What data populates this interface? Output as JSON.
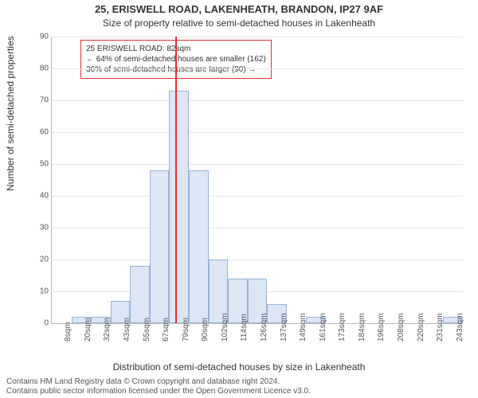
{
  "titles": {
    "main": "25, ERISWELL ROAD, LAKENHEATH, BRANDON, IP27 9AF",
    "sub": "Size of property relative to semi-detached houses in Lakenheath",
    "ylabel": "Number of semi-detached properties",
    "xlabel": "Distribution of semi-detached houses by size in Lakenheath"
  },
  "footer": {
    "l1": "Contains HM Land Registry data © Crown copyright and database right 2024.",
    "l2": "Contains public sector information licensed under the Open Government Licence v3.0."
  },
  "chart": {
    "type": "histogram",
    "ylim": [
      0,
      90
    ],
    "yticks": [
      0,
      10,
      20,
      30,
      40,
      50,
      60,
      70,
      80,
      90
    ],
    "xcats": [
      "8sqm",
      "20sqm",
      "32sqm",
      "43sqm",
      "55sqm",
      "67sqm",
      "79sqm",
      "90sqm",
      "102sqm",
      "114sqm",
      "126sqm",
      "137sqm",
      "149sqm",
      "161sqm",
      "173sqm",
      "184sqm",
      "196sqm",
      "208sqm",
      "220sqm",
      "231sqm",
      "243sqm"
    ],
    "values": [
      0,
      2,
      2,
      7,
      18,
      48,
      73,
      48,
      20,
      14,
      14,
      6,
      0,
      2,
      0,
      0,
      0,
      0,
      0,
      0,
      2
    ],
    "bar_fill": "#dce6f4",
    "bar_stroke": "#99b3d9",
    "grid_color": "#e6e6e6",
    "marker_x_index": 6.3,
    "marker_color": "#d33"
  },
  "callout": {
    "l1": "25 ERISWELL ROAD: 82sqm",
    "l2": "← 64% of semi-detached houses are smaller (162)",
    "l3": "36% of semi-detached houses are larger (90) →"
  }
}
